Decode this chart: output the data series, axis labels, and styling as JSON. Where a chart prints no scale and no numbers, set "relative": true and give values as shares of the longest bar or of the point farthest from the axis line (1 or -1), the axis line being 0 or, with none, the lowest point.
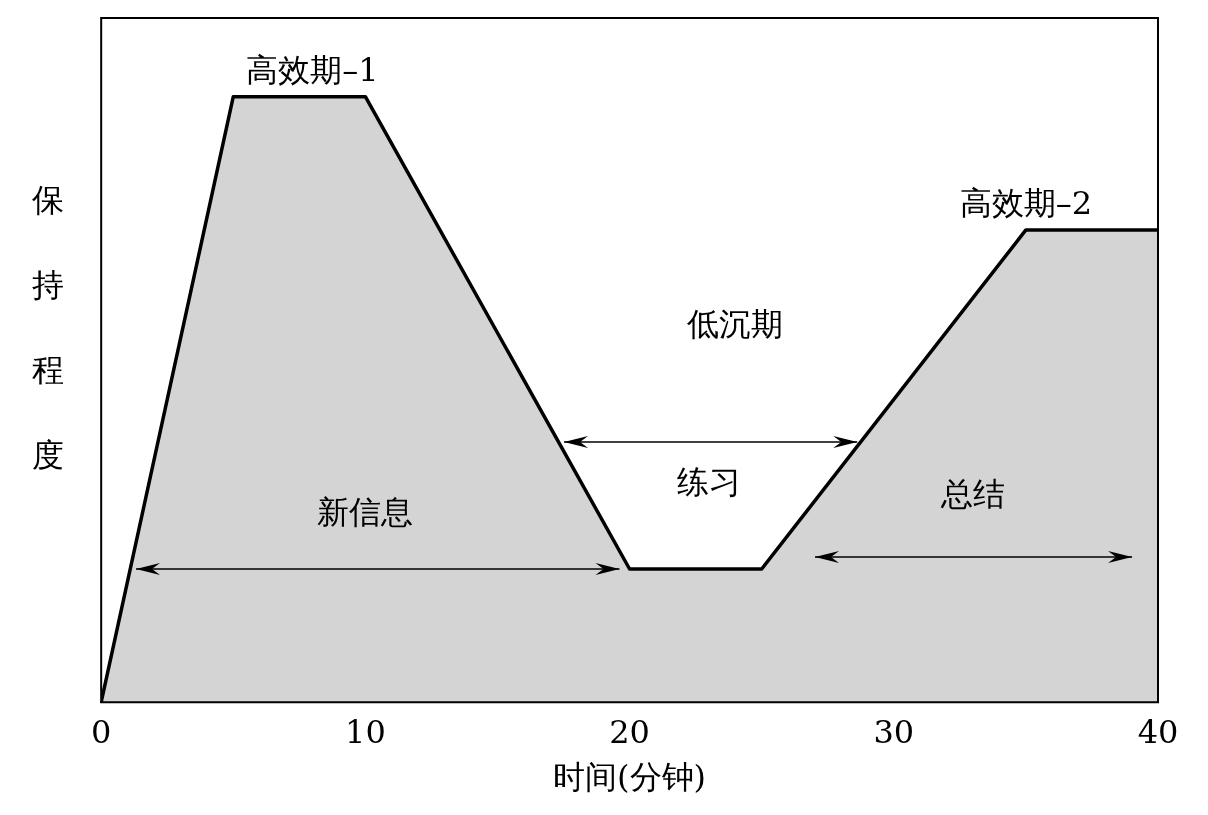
{
  "chart_data": {
    "type": "area",
    "relative": true,
    "xlabel": "时间(分钟)",
    "ylabel": "保持程度",
    "x": [
      0,
      5,
      10,
      20,
      25,
      35,
      40
    ],
    "xlim": [
      0,
      40
    ],
    "xticks": [
      0,
      10,
      20,
      30,
      40
    ],
    "series": [
      {
        "color": "#000000",
        "values": [
          0,
          1,
          1,
          0.22,
          0.22,
          0.78,
          0.78
        ]
      }
    ],
    "grid": false,
    "legend": false,
    "marker": "none",
    "annotations": [
      {
        "text": "高效期–1",
        "x": 8,
        "y": 1
      },
      {
        "text": "高效期–2",
        "x": 35,
        "y": 0.78
      },
      "低沉期",
      "练习",
      "新信息",
      "总结"
    ]
  }
}
